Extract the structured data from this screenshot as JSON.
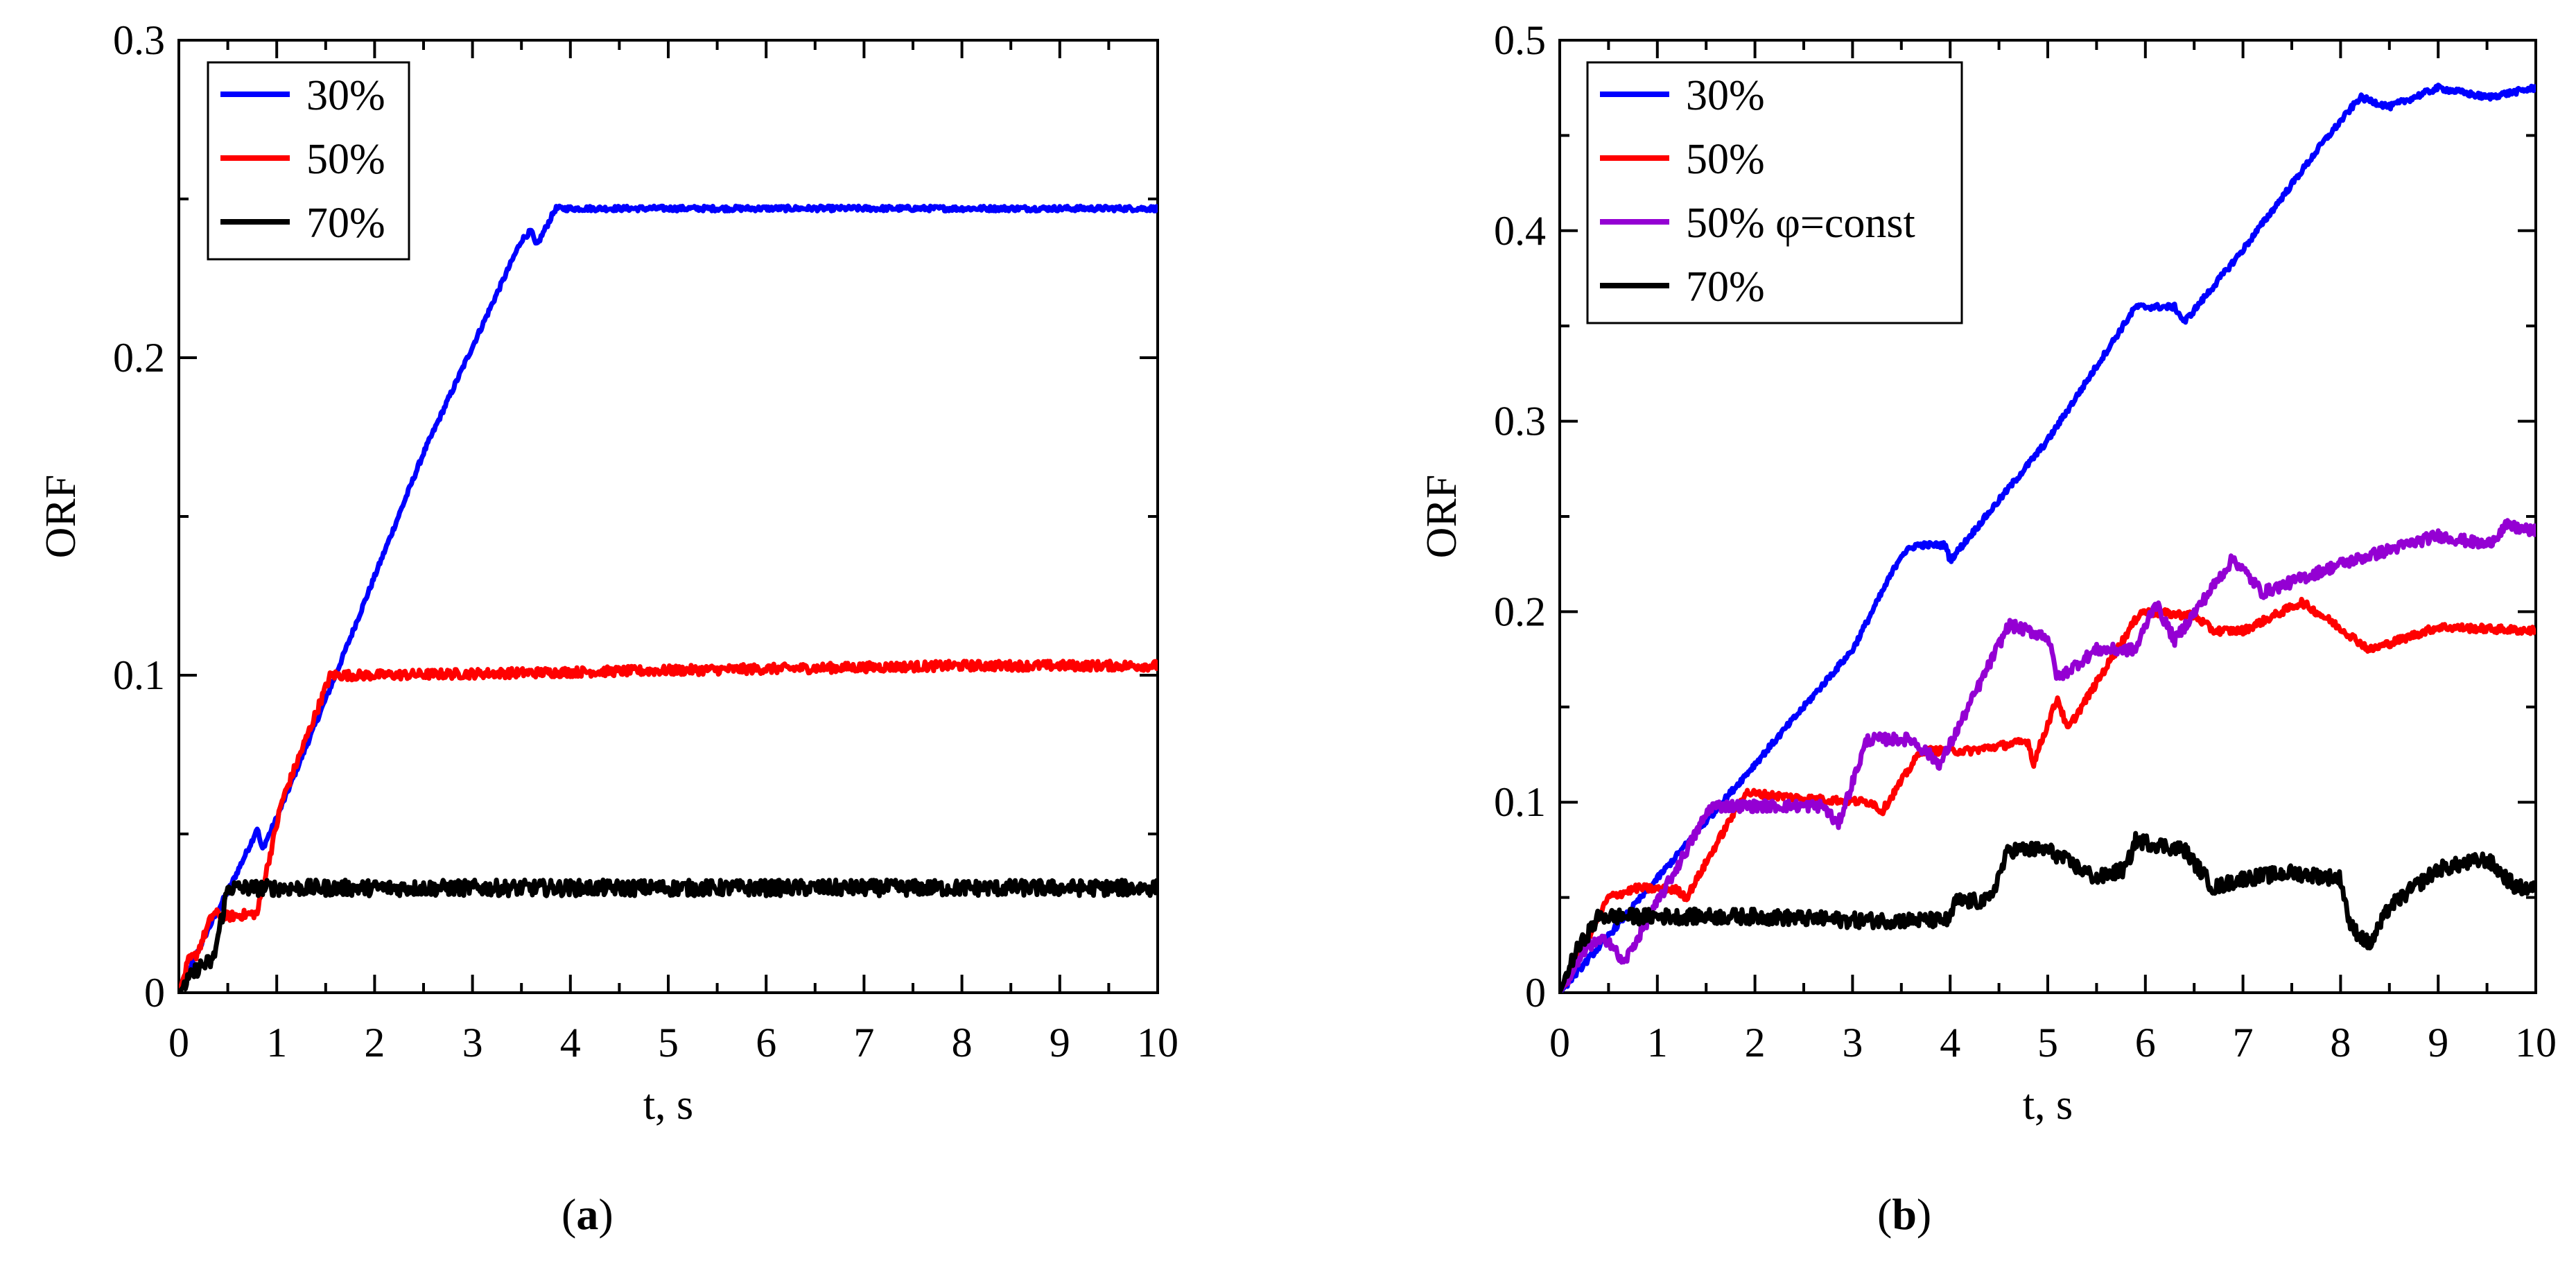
{
  "chart_data": [
    {
      "type": "line",
      "panel_label": "a",
      "xlabel": "t, s",
      "ylabel": "ORF",
      "xlim": [
        0,
        10
      ],
      "ylim": [
        0,
        0.3
      ],
      "xticks": [
        0,
        1,
        2,
        3,
        4,
        5,
        6,
        7,
        8,
        9,
        10
      ],
      "xtick_labels": [
        "0",
        "1",
        "2",
        "3",
        "4",
        "5",
        "6",
        "7",
        "8",
        "9",
        "10"
      ],
      "yticks": [
        0,
        0.1,
        0.2,
        0.3
      ],
      "ytick_labels": [
        "0",
        "0.1",
        "0.2",
        "0.3"
      ],
      "legend_position": "top-left",
      "series": [
        {
          "name": "30%",
          "color": "#0000ff",
          "noise": 0.0008,
          "points": [
            [
              0,
              0
            ],
            [
              0.3,
              0.02
            ],
            [
              0.55,
              0.035
            ],
            [
              0.75,
              0.048
            ],
            [
              0.8,
              0.052
            ],
            [
              0.85,
              0.045
            ],
            [
              1.0,
              0.055
            ],
            [
              1.6,
              0.1
            ],
            [
              2.5,
              0.17
            ],
            [
              3.5,
              0.237
            ],
            [
              3.6,
              0.24
            ],
            [
              3.65,
              0.235
            ],
            [
              3.85,
              0.247
            ],
            [
              10,
              0.247
            ]
          ]
        },
        {
          "name": "50%",
          "color": "#ff0000",
          "noise": 0.0015,
          "points": [
            [
              0,
              0
            ],
            [
              0.1,
              0.01
            ],
            [
              0.18,
              0.012
            ],
            [
              0.35,
              0.025
            ],
            [
              0.5,
              0.024
            ],
            [
              0.8,
              0.025
            ],
            [
              1.05,
              0.06
            ],
            [
              1.55,
              0.1
            ],
            [
              2,
              0.1
            ],
            [
              4,
              0.101
            ],
            [
              6,
              0.102
            ],
            [
              8,
              0.103
            ],
            [
              10,
              0.103
            ]
          ]
        },
        {
          "name": "70%",
          "color": "#000000",
          "noise": 0.0025,
          "points": [
            [
              0,
              0
            ],
            [
              0.2,
              0.008
            ],
            [
              0.35,
              0.01
            ],
            [
              0.5,
              0.033
            ],
            [
              1,
              0.033
            ],
            [
              5,
              0.033
            ],
            [
              10,
              0.033
            ]
          ]
        }
      ]
    },
    {
      "type": "line",
      "panel_label": "b",
      "xlabel": "t, s",
      "ylabel": "ORF",
      "xlim": [
        0,
        10
      ],
      "ylim": [
        0,
        0.5
      ],
      "xticks": [
        0,
        1,
        2,
        3,
        4,
        5,
        6,
        7,
        8,
        9,
        10
      ],
      "xtick_labels": [
        "0",
        "1",
        "2",
        "3",
        "4",
        "5",
        "6",
        "7",
        "8",
        "9",
        "10"
      ],
      "yticks": [
        0,
        0.1,
        0.2,
        0.3,
        0.4,
        0.5
      ],
      "ytick_labels": [
        "0",
        "0.1",
        "0.2",
        "0.3",
        "0.4",
        "0.5"
      ],
      "legend_position": "top-left",
      "series": [
        {
          "name": "30%",
          "color": "#0000ff",
          "noise": 0.0015,
          "points": [
            [
              0,
              0
            ],
            [
              0.5,
              0.03
            ],
            [
              1,
              0.06
            ],
            [
              2,
              0.12
            ],
            [
              3,
              0.18
            ],
            [
              3.5,
              0.23
            ],
            [
              3.65,
              0.235
            ],
            [
              3.95,
              0.235
            ],
            [
              4,
              0.227
            ],
            [
              5,
              0.29
            ],
            [
              5.9,
              0.36
            ],
            [
              6.3,
              0.36
            ],
            [
              6.4,
              0.352
            ],
            [
              7,
              0.39
            ],
            [
              7.8,
              0.445
            ],
            [
              8.2,
              0.47
            ],
            [
              8.5,
              0.465
            ],
            [
              9,
              0.475
            ],
            [
              9.5,
              0.47
            ],
            [
              10,
              0.475
            ]
          ]
        },
        {
          "name": "50%",
          "color": "#ff0000",
          "noise": 0.002,
          "points": [
            [
              0,
              0
            ],
            [
              0.2,
              0.02
            ],
            [
              0.5,
              0.05
            ],
            [
              0.8,
              0.055
            ],
            [
              1.2,
              0.054
            ],
            [
              1.3,
              0.05
            ],
            [
              1.9,
              0.105
            ],
            [
              2.5,
              0.102
            ],
            [
              3.2,
              0.1
            ],
            [
              3.3,
              0.095
            ],
            [
              3.7,
              0.127
            ],
            [
              4.2,
              0.127
            ],
            [
              4.8,
              0.132
            ],
            [
              4.85,
              0.12
            ],
            [
              5.1,
              0.155
            ],
            [
              5.2,
              0.138
            ],
            [
              5.95,
              0.2
            ],
            [
              6.5,
              0.198
            ],
            [
              6.7,
              0.19
            ],
            [
              7,
              0.19
            ],
            [
              7.6,
              0.205
            ],
            [
              7.9,
              0.195
            ],
            [
              8.3,
              0.18
            ],
            [
              9,
              0.192
            ],
            [
              10,
              0.19
            ]
          ]
        },
        {
          "name": "50% φ=const",
          "color": "#9400d3",
          "noise": 0.003,
          "points": [
            [
              0,
              0
            ],
            [
              0.3,
              0.025
            ],
            [
              0.5,
              0.028
            ],
            [
              0.65,
              0.015
            ],
            [
              1.55,
              0.098
            ],
            [
              2,
              0.098
            ],
            [
              2.7,
              0.098
            ],
            [
              2.85,
              0.088
            ],
            [
              3.15,
              0.133
            ],
            [
              3.6,
              0.133
            ],
            [
              3.9,
              0.12
            ],
            [
              4.6,
              0.193
            ],
            [
              5,
              0.187
            ],
            [
              5.1,
              0.165
            ],
            [
              5.5,
              0.18
            ],
            [
              5.9,
              0.18
            ],
            [
              6.1,
              0.205
            ],
            [
              6.3,
              0.185
            ],
            [
              6.9,
              0.228
            ],
            [
              7.2,
              0.21
            ],
            [
              8,
              0.225
            ],
            [
              9,
              0.24
            ],
            [
              9.5,
              0.235
            ],
            [
              9.7,
              0.245
            ],
            [
              10,
              0.242
            ]
          ]
        },
        {
          "name": "70%",
          "color": "#000000",
          "noise": 0.004,
          "points": [
            [
              0,
              0
            ],
            [
              0.15,
              0.02
            ],
            [
              0.4,
              0.04
            ],
            [
              1,
              0.04
            ],
            [
              2,
              0.04
            ],
            [
              3,
              0.038
            ],
            [
              4,
              0.038
            ],
            [
              4.05,
              0.048
            ],
            [
              4.4,
              0.048
            ],
            [
              4.6,
              0.075
            ],
            [
              5,
              0.075
            ],
            [
              5.5,
              0.06
            ],
            [
              5.8,
              0.065
            ],
            [
              5.9,
              0.08
            ],
            [
              6.4,
              0.075
            ],
            [
              6.7,
              0.055
            ],
            [
              7,
              0.06
            ],
            [
              7.5,
              0.063
            ],
            [
              8,
              0.06
            ],
            [
              8.1,
              0.035
            ],
            [
              8.3,
              0.025
            ],
            [
              8.5,
              0.045
            ],
            [
              9,
              0.065
            ],
            [
              9.5,
              0.07
            ],
            [
              9.8,
              0.055
            ],
            [
              10,
              0.055
            ]
          ]
        }
      ]
    }
  ]
}
